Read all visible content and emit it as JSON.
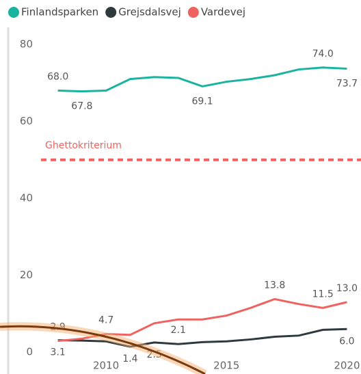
{
  "chart_data": {
    "type": "line",
    "x": [
      2008,
      2009,
      2010,
      2011,
      2012,
      2013,
      2014,
      2015,
      2016,
      2017,
      2018,
      2019,
      2020
    ],
    "series": [
      {
        "name": "Finlandsparken",
        "color": "#1ab3a0",
        "values": [
          68.0,
          67.8,
          68.0,
          71.0,
          71.5,
          71.3,
          69.1,
          70.3,
          71.0,
          72.0,
          73.5,
          74.0,
          73.7
        ],
        "value_labels": [
          "68.0",
          "67.8",
          null,
          null,
          null,
          null,
          "69.1",
          null,
          null,
          null,
          null,
          "74.0",
          "73.7"
        ]
      },
      {
        "name": "Grejsdalsvej",
        "color": "#2f3a3f",
        "values": [
          3.1,
          3.0,
          2.8,
          1.4,
          2.5,
          2.1,
          2.6,
          2.8,
          3.3,
          4.0,
          4.3,
          5.8,
          6.0
        ],
        "value_labels": [
          "3.1",
          null,
          null,
          "1.4",
          "2.5",
          "2.1",
          null,
          null,
          null,
          null,
          null,
          null,
          "6.0"
        ]
      },
      {
        "name": "Vardevej",
        "color": "#f0625f",
        "values": [
          2.9,
          3.5,
          4.7,
          4.5,
          7.5,
          8.5,
          8.5,
          9.5,
          11.5,
          13.8,
          12.5,
          11.5,
          13.0
        ],
        "value_labels": [
          "2.9",
          null,
          "4.7",
          null,
          null,
          null,
          null,
          null,
          null,
          "13.8",
          null,
          "11.5",
          "13.0"
        ]
      }
    ],
    "reference_line": {
      "value": 50,
      "label": "Ghettokriterium",
      "color": "#f0625f"
    },
    "xlim": [
      2007.3,
      2020.3
    ],
    "xticks": [
      2010,
      2015,
      2020
    ],
    "ylim": [
      0,
      80
    ],
    "yticks": [
      0,
      20,
      40,
      60,
      80
    ],
    "legend": "top-left"
  }
}
